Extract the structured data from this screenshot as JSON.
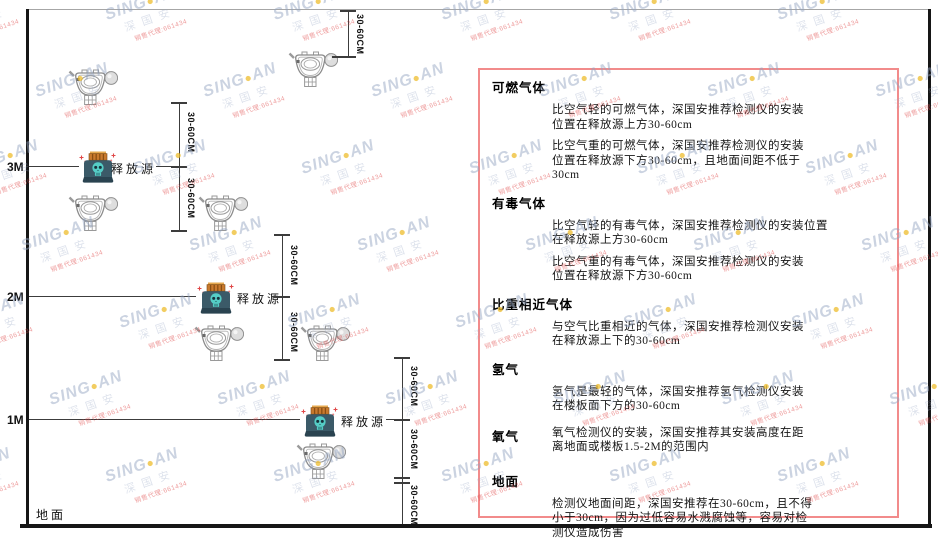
{
  "watermark": {
    "brand_left": "SING",
    "dot": "●",
    "brand_right": "AN",
    "cjk": "深国安",
    "red_text": "销售代理:661434"
  },
  "diagram": {
    "height_labels": [
      "3M",
      "2M",
      "1M"
    ],
    "release_source_label": "释放源",
    "ground_label": "地面",
    "dim_label": "30-60CM"
  },
  "panel": {
    "sections": [
      {
        "heading": "可燃气体",
        "inline": false,
        "paragraphs": [
          [
            "比空气轻的可燃气体，深国安推荐检测仪的安装",
            "位置在释放源上方30-60cm"
          ],
          [
            "比空气重的可燃气体，深国安推荐检测仪的安装",
            "位置在释放源下方30-60cm，且地面间距不低于",
            "30cm"
          ]
        ]
      },
      {
        "heading": "有毒气体",
        "inline": false,
        "paragraphs": [
          [
            "比空气轻的有毒气体，深国安推荐检测仪的安装位置",
            "在释放源上方30-60cm"
          ],
          [
            "比空气重的有毒气体，深国安推荐检测仪的安装",
            "位置在释放源下方30-60cm"
          ]
        ]
      },
      {
        "heading": "比重相近气体",
        "inline": false,
        "paragraphs": [
          [
            "与空气比重相近的气体，深国安推荐检测仪安装",
            "在释放源上下的30-60cm"
          ]
        ]
      },
      {
        "heading": "氢气",
        "inline": false,
        "paragraphs": [
          [
            "氢气是最轻的气体，深国安推荐氢气检测仪安装",
            "在楼板面下方的30-60cm"
          ]
        ]
      },
      {
        "heading": "氧气",
        "inline": true,
        "paragraphs": [
          [
            "氧气检测仪的安装，深国安推荐其安装高度在距",
            "离地面或楼板1.5-2M的范围内"
          ]
        ]
      },
      {
        "heading": "地面",
        "inline": false,
        "paragraphs": [
          [
            "检测仪地面间距，深国安推荐在30-60cm，且不得",
            "小于30cm，因为过低容易水溅腐蚀等，容易对检",
            "测仪造成伤害"
          ]
        ]
      }
    ]
  },
  "colors": {
    "panel_border": "#f28b8b",
    "wall": "#161616",
    "ceiling": "#a6a6a6",
    "release_cap": "#c97a2e",
    "release_body": "#3b5a68",
    "release_skull": "#55cdc6",
    "spark_red": "#e04848",
    "watermark_blue": "#93a2c1",
    "watermark_yellow": "#eebc2c"
  }
}
